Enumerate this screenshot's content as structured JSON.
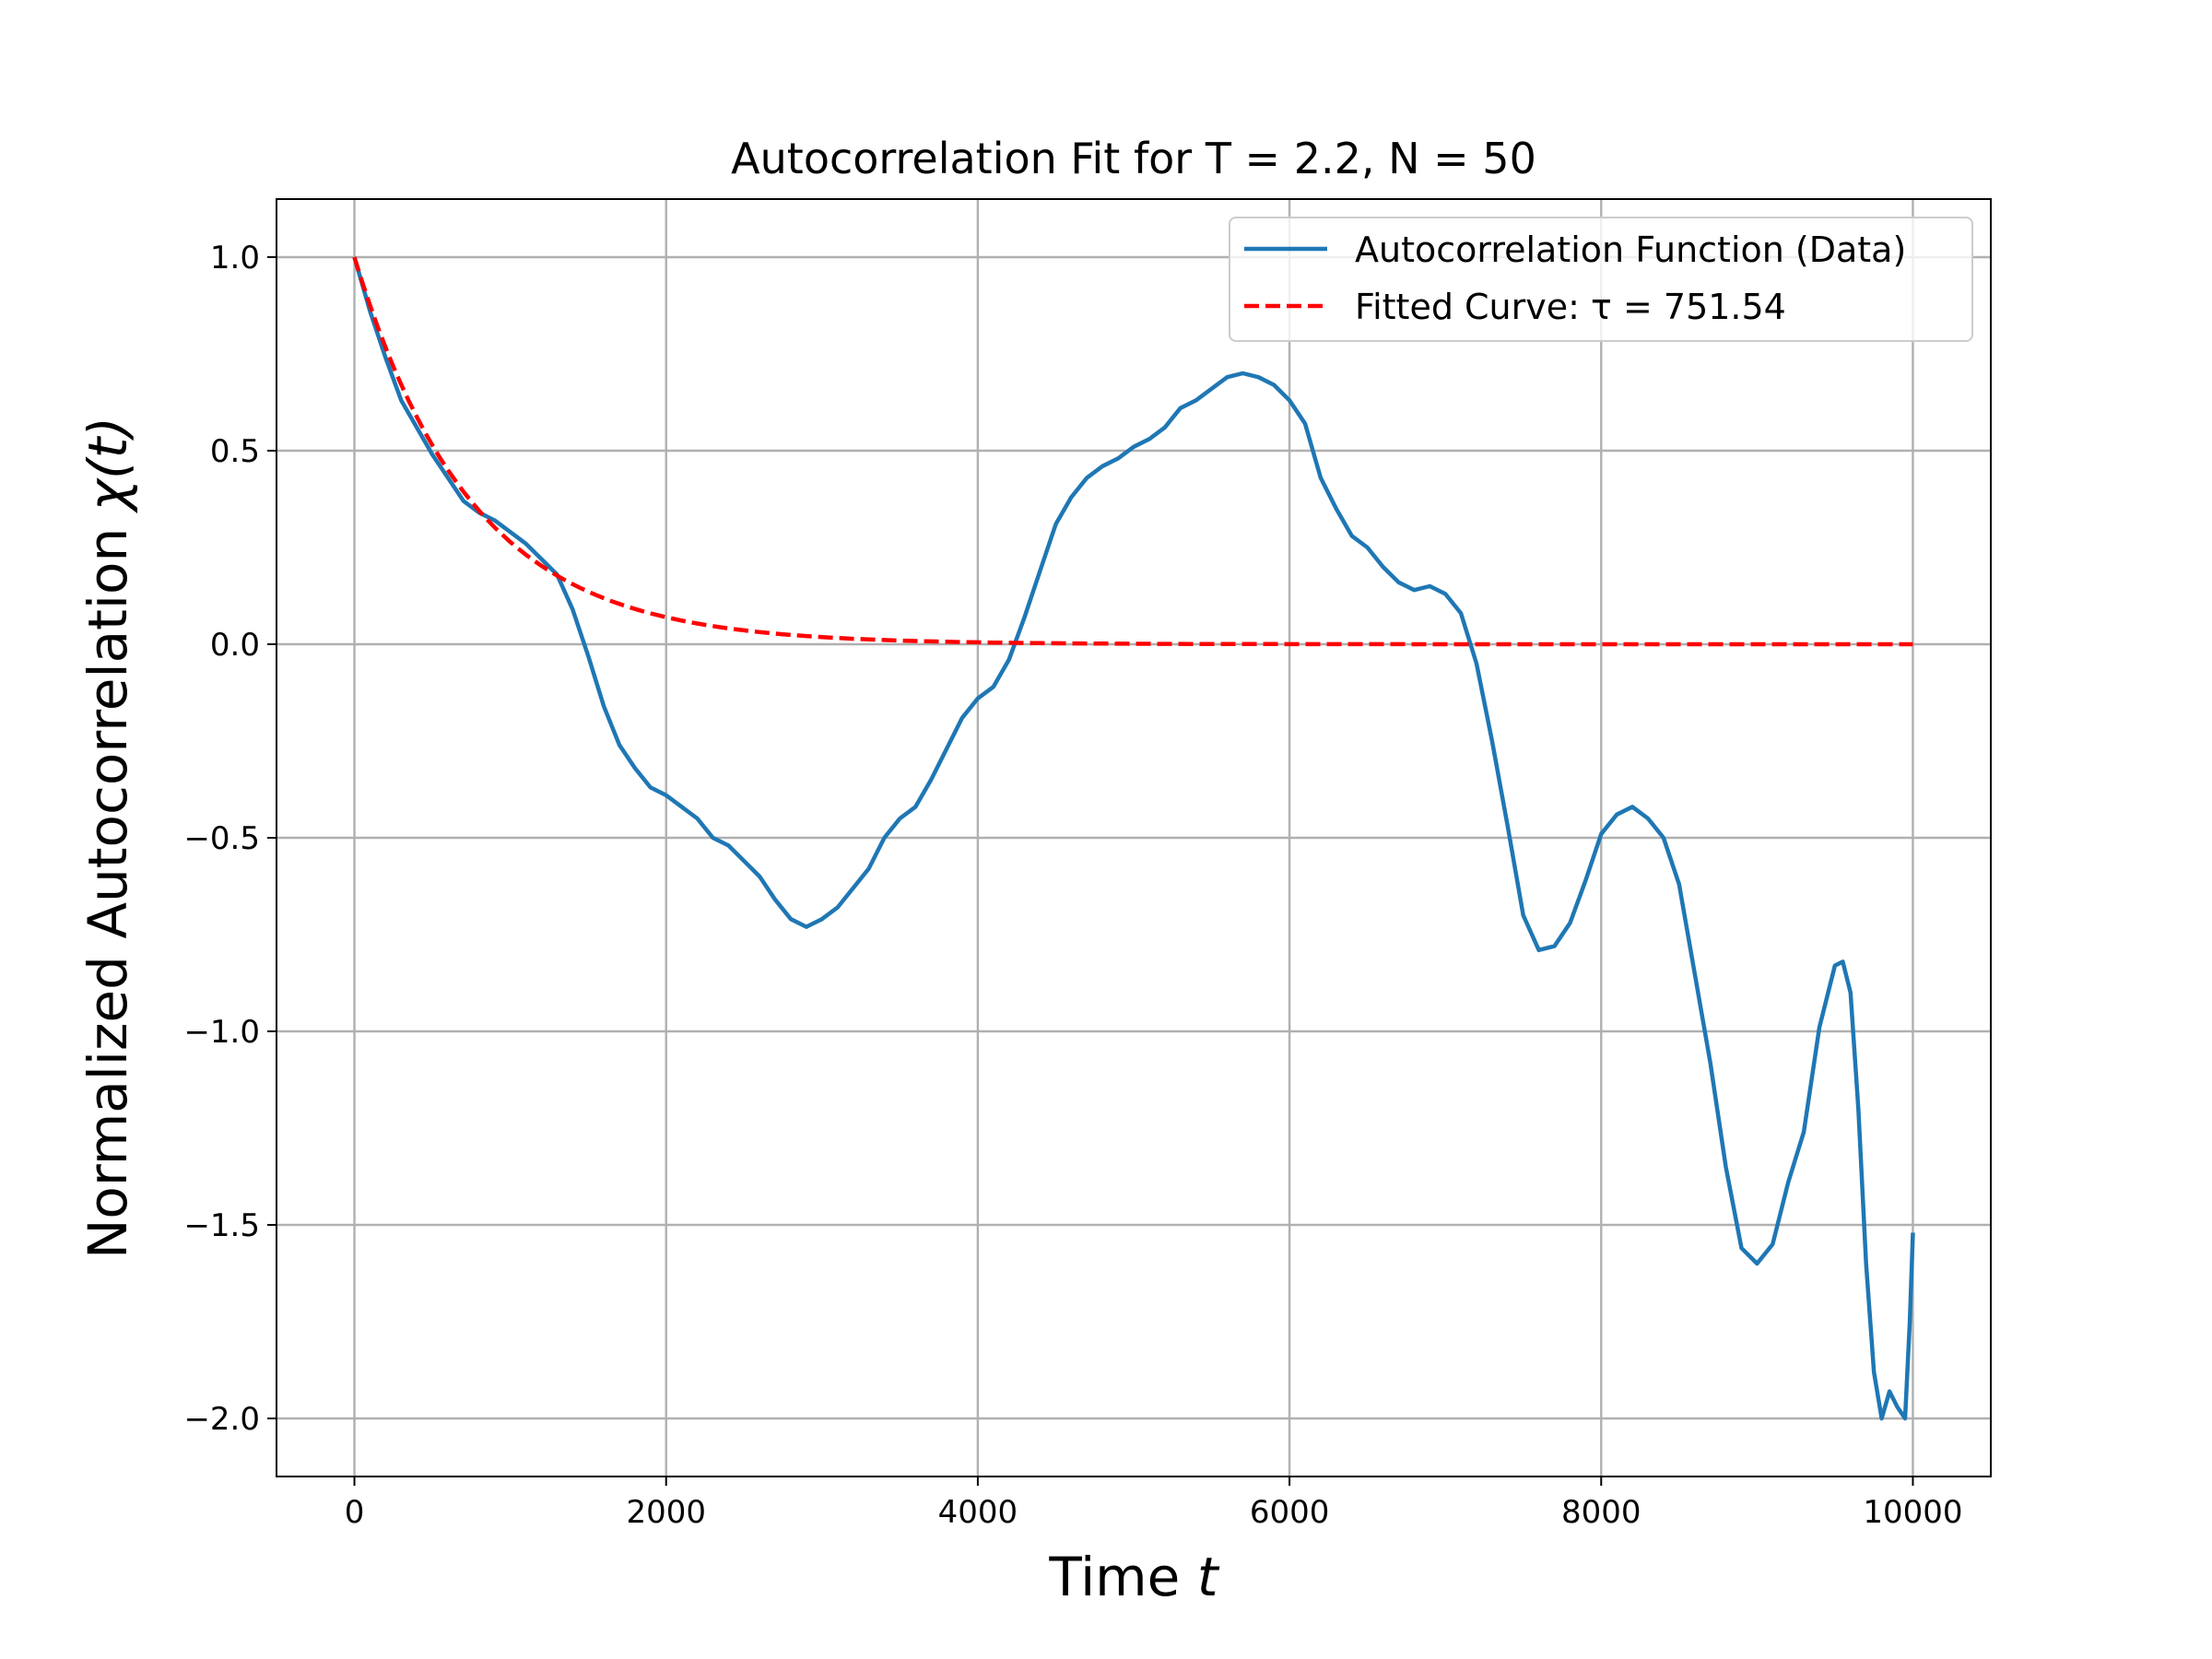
{
  "chart_data": {
    "type": "line",
    "title": "Autocorrelation Fit for T = 2.2, N = 50",
    "xlabel": {
      "prefix": "Time ",
      "var": "t"
    },
    "ylabel": {
      "prefix": "Normalized Autocorrelation ",
      "var": "χ(t)"
    },
    "xlim": [
      -500,
      10500
    ],
    "ylim": [
      -2.15,
      1.15
    ],
    "x_ticks": [
      0,
      2000,
      4000,
      6000,
      8000,
      10000
    ],
    "x_tick_labels": [
      "0",
      "2000",
      "4000",
      "6000",
      "8000",
      "10000"
    ],
    "y_ticks": [
      1.0,
      0.5,
      0.0,
      -0.5,
      -1.0,
      -1.5,
      -2.0
    ],
    "y_tick_labels": [
      "1.0",
      "0.5",
      "0.0",
      "−0.5",
      "−1.0",
      "−1.5",
      "−2.0"
    ],
    "grid": true,
    "legend_position": "top-right",
    "series": [
      {
        "name": "Autocorrelation Function (Data)",
        "style": "solid",
        "color": "#1f77b4",
        "points": [
          [
            0,
            1.0
          ],
          [
            100,
            0.86
          ],
          [
            200,
            0.74
          ],
          [
            300,
            0.63
          ],
          [
            400,
            0.56
          ],
          [
            500,
            0.49
          ],
          [
            600,
            0.43
          ],
          [
            700,
            0.37
          ],
          [
            800,
            0.34
          ],
          [
            900,
            0.32
          ],
          [
            1000,
            0.29
          ],
          [
            1100,
            0.26
          ],
          [
            1200,
            0.22
          ],
          [
            1300,
            0.18
          ],
          [
            1400,
            0.09
          ],
          [
            1500,
            -0.03
          ],
          [
            1600,
            -0.16
          ],
          [
            1700,
            -0.26
          ],
          [
            1800,
            -0.32
          ],
          [
            1900,
            -0.37
          ],
          [
            2000,
            -0.39
          ],
          [
            2100,
            -0.42
          ],
          [
            2200,
            -0.45
          ],
          [
            2300,
            -0.5
          ],
          [
            2400,
            -0.52
          ],
          [
            2500,
            -0.56
          ],
          [
            2600,
            -0.6
          ],
          [
            2700,
            -0.66
          ],
          [
            2800,
            -0.71
          ],
          [
            2900,
            -0.73
          ],
          [
            3000,
            -0.71
          ],
          [
            3100,
            -0.68
          ],
          [
            3200,
            -0.63
          ],
          [
            3300,
            -0.58
          ],
          [
            3400,
            -0.5
          ],
          [
            3500,
            -0.45
          ],
          [
            3600,
            -0.42
          ],
          [
            3700,
            -0.35
          ],
          [
            3800,
            -0.27
          ],
          [
            3900,
            -0.19
          ],
          [
            4000,
            -0.14
          ],
          [
            4100,
            -0.11
          ],
          [
            4200,
            -0.04
          ],
          [
            4300,
            0.07
          ],
          [
            4400,
            0.19
          ],
          [
            4500,
            0.31
          ],
          [
            4600,
            0.38
          ],
          [
            4700,
            0.43
          ],
          [
            4800,
            0.46
          ],
          [
            4900,
            0.48
          ],
          [
            5000,
            0.51
          ],
          [
            5100,
            0.53
          ],
          [
            5200,
            0.56
          ],
          [
            5300,
            0.61
          ],
          [
            5400,
            0.63
          ],
          [
            5500,
            0.66
          ],
          [
            5600,
            0.69
          ],
          [
            5700,
            0.7
          ],
          [
            5800,
            0.69
          ],
          [
            5900,
            0.67
          ],
          [
            6000,
            0.63
          ],
          [
            6100,
            0.57
          ],
          [
            6200,
            0.43
          ],
          [
            6300,
            0.35
          ],
          [
            6400,
            0.28
          ],
          [
            6500,
            0.25
          ],
          [
            6600,
            0.2
          ],
          [
            6700,
            0.16
          ],
          [
            6800,
            0.14
          ],
          [
            6900,
            0.15
          ],
          [
            7000,
            0.13
          ],
          [
            7100,
            0.08
          ],
          [
            7200,
            -0.05
          ],
          [
            7300,
            -0.25
          ],
          [
            7400,
            -0.47
          ],
          [
            7500,
            -0.7
          ],
          [
            7600,
            -0.79
          ],
          [
            7700,
            -0.78
          ],
          [
            7800,
            -0.72
          ],
          [
            7900,
            -0.61
          ],
          [
            8000,
            -0.49
          ],
          [
            8100,
            -0.44
          ],
          [
            8200,
            -0.42
          ],
          [
            8300,
            -0.45
          ],
          [
            8400,
            -0.5
          ],
          [
            8500,
            -0.62
          ],
          [
            8600,
            -0.85
          ],
          [
            8700,
            -1.08
          ],
          [
            8800,
            -1.35
          ],
          [
            8900,
            -1.56
          ],
          [
            9000,
            -1.6
          ],
          [
            9100,
            -1.55
          ],
          [
            9200,
            -1.39
          ],
          [
            9300,
            -1.26
          ],
          [
            9400,
            -0.99
          ],
          [
            9500,
            -0.83
          ],
          [
            9550,
            -0.82
          ],
          [
            9600,
            -0.9
          ],
          [
            9650,
            -1.2
          ],
          [
            9700,
            -1.6
          ],
          [
            9750,
            -1.88
          ],
          [
            9800,
            -2.0
          ],
          [
            9850,
            -1.93
          ],
          [
            9900,
            -1.97
          ],
          [
            9950,
            -2.0
          ],
          [
            9980,
            -1.75
          ],
          [
            10000,
            -1.52
          ]
        ]
      },
      {
        "name": "Fitted Curve: τ = 751.54",
        "style": "dashed",
        "color": "#ff0000",
        "tau": 751.54,
        "x_range": [
          0,
          10000
        ]
      }
    ]
  }
}
